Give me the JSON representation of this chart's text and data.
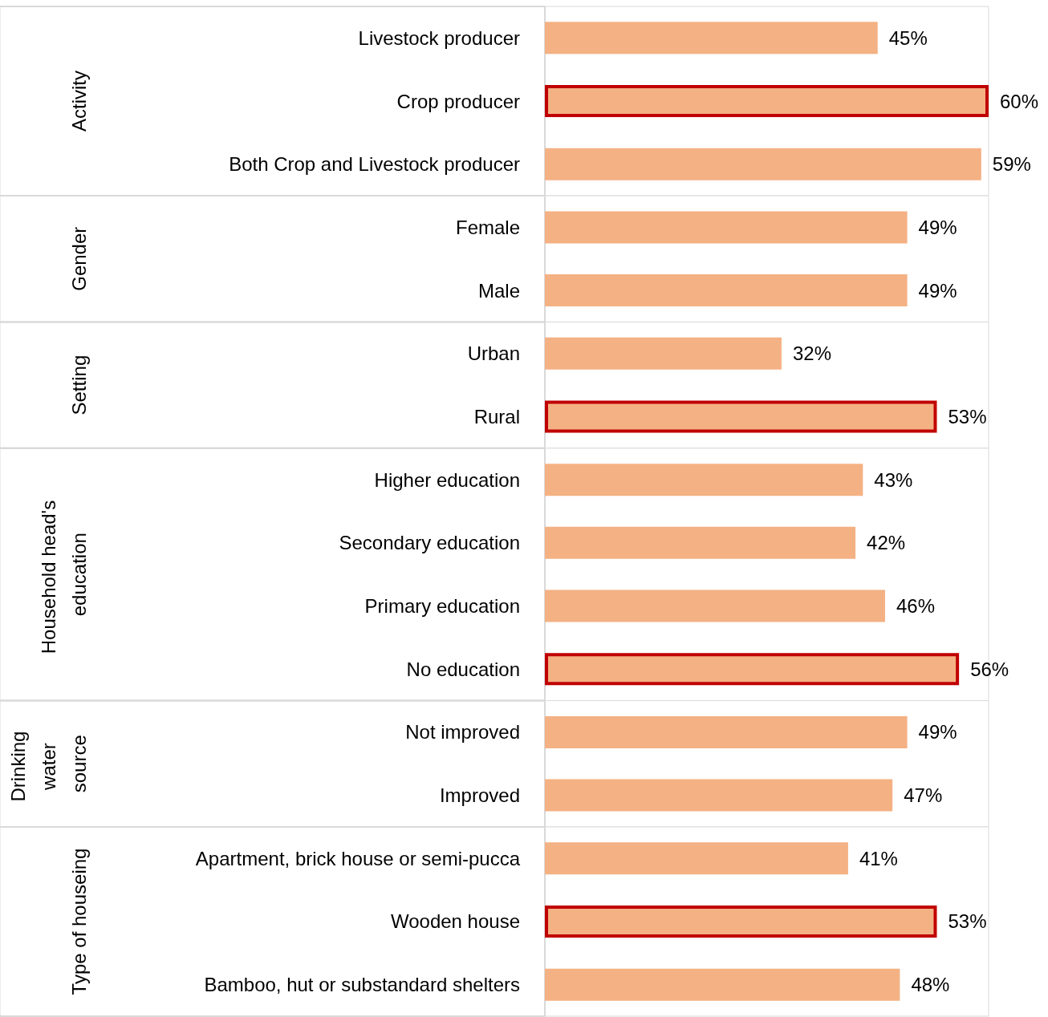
{
  "chart_data": {
    "type": "bar",
    "orientation": "horizontal",
    "categories": [
      "Livestock producer",
      "Crop producer",
      "Both Crop and Livestock producer",
      "Female",
      "Male",
      "Urban",
      "Rural",
      "Higher education",
      "Secondary education",
      "Primary education",
      "No education",
      "Not improved",
      "Improved",
      "Apartment, brick house or semi-pucca",
      "Wooden house",
      "Bamboo, hut or substandard shelters"
    ],
    "series": [
      {
        "color": "#f4b183",
        "values": [
          45,
          null,
          59,
          49,
          49,
          32,
          null,
          43,
          42,
          46,
          null,
          49,
          47,
          41,
          null,
          48
        ],
        "value_labels": [
          "45%",
          null,
          "59%",
          "49%",
          "49%",
          "32%",
          null,
          "43%",
          "42%",
          "46%",
          null,
          "49%",
          "47%",
          "41%",
          null,
          "48%"
        ]
      },
      {
        "color": "#f4b183",
        "values": [
          null,
          60,
          null,
          null,
          null,
          null,
          53,
          null,
          null,
          null,
          56,
          null,
          null,
          null,
          53,
          null
        ],
        "value_labels": [
          null,
          "60%",
          null,
          null,
          null,
          null,
          "53%",
          null,
          null,
          null,
          "56%",
          null,
          null,
          null,
          "53%",
          null
        ]
      }
    ],
    "bands": [
      {
        "axis": "y",
        "from": "Livestock producer",
        "to": "Both Crop and Livestock producer",
        "label": "Activity",
        "color": "#ffffff"
      },
      {
        "axis": "y",
        "from": "Female",
        "to": "Male",
        "label": "Gender",
        "color": "#ffffff"
      },
      {
        "axis": "y",
        "from": "Urban",
        "to": "Rural",
        "label": "Setting",
        "color": "#ffffff"
      },
      {
        "axis": "y",
        "from": "Higher education",
        "to": "No education",
        "label": "Household head's education",
        "color": "#ffffff"
      },
      {
        "axis": "y",
        "from": "Not improved",
        "to": "Improved",
        "label": "Drinking water source",
        "color": "#ffffff"
      },
      {
        "axis": "y",
        "from": "Apartment, brick house or semi-pucca",
        "to": "Bamboo, hut or substandard shelters",
        "label": "Type of houseing",
        "color": "#ffffff"
      }
    ]
  }
}
